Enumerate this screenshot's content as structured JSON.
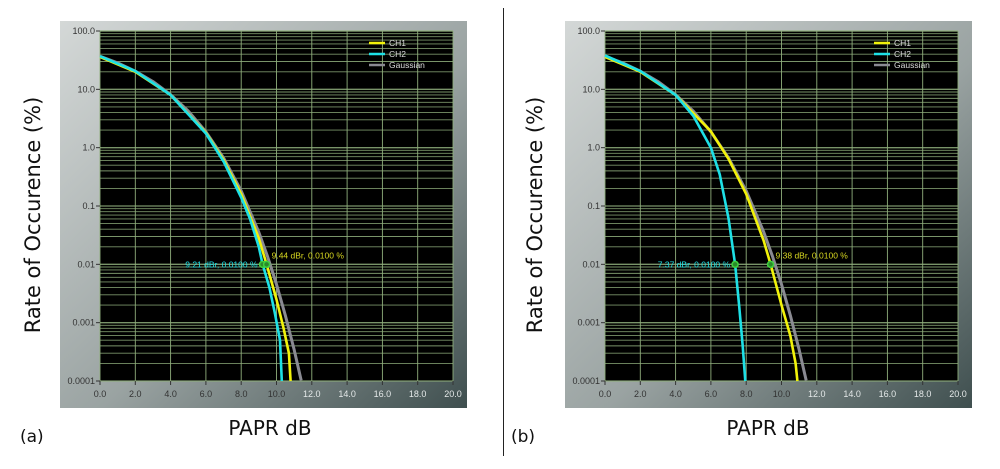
{
  "chart_data": [
    {
      "type": "line",
      "panel_label": "(a)",
      "xlabel": "PAPR dB",
      "ylabel": "Rate of Occurence (%)",
      "xlim": [
        0,
        20
      ],
      "ylim": [
        0.0001,
        100
      ],
      "yscale": "log",
      "grid": true,
      "legend_position": "top-right",
      "xticks": [
        "0.0",
        "2.0",
        "4.0",
        "6.0",
        "8.0",
        "10.0",
        "12.0",
        "14.0",
        "16.0",
        "18.0",
        "20.0"
      ],
      "yticks": [
        "100.0",
        "10.0",
        "1.0",
        "0.1",
        "0.01",
        "0.001",
        "0.0001"
      ],
      "series": [
        {
          "name": "CH1",
          "color": "#f2f20a",
          "x": [
            0,
            2,
            4,
            6,
            7,
            8,
            9,
            9.44,
            10,
            10.4,
            10.7,
            10.8
          ],
          "y": [
            36,
            20,
            8,
            1.8,
            0.62,
            0.16,
            0.028,
            0.01,
            0.0025,
            0.0008,
            0.0003,
            0.0001
          ]
        },
        {
          "name": "CH2",
          "color": "#1ee0e6",
          "x": [
            0,
            2,
            4,
            6,
            7,
            8,
            8.5,
            9,
            9.21,
            9.6,
            9.9,
            10.2,
            10.3
          ],
          "y": [
            37,
            20.5,
            8,
            1.75,
            0.58,
            0.14,
            0.06,
            0.02,
            0.01,
            0.004,
            0.0015,
            0.0005,
            0.0001
          ]
        },
        {
          "name": "Gaussian",
          "color": "#8a8a92",
          "x": [
            0,
            1,
            2,
            3,
            4,
            5,
            6,
            7,
            8,
            9,
            9.5,
            10,
            10.5,
            11,
            11.4
          ],
          "y": [
            36.79,
            28.39,
            20.49,
            13.6,
            8.11,
            4.23,
            1.87,
            0.666,
            0.182,
            0.0355,
            0.0134,
            0.00454,
            0.00134,
            0.000341,
            0.000102
          ]
        }
      ],
      "markers": [
        {
          "series": "CH2",
          "x": 9.21,
          "y": 0.01,
          "label": "9.21 dBr, 0.0100 %",
          "color": "#1ee0e6",
          "side": "left"
        },
        {
          "series": "CH1",
          "x": 9.44,
          "y": 0.01,
          "label": "9.44 dBr, 0.0100 %",
          "color": "#d8d820",
          "side": "right"
        }
      ]
    },
    {
      "type": "line",
      "panel_label": "(b)",
      "xlabel": "PAPR dB",
      "ylabel": "Rate of Occurence (%)",
      "xlim": [
        0,
        20
      ],
      "ylim": [
        0.0001,
        100
      ],
      "yscale": "log",
      "grid": true,
      "legend_position": "top-right",
      "xticks": [
        "0.0",
        "2.0",
        "4.0",
        "6.0",
        "8.0",
        "10.0",
        "12.0",
        "14.0",
        "16.0",
        "18.0",
        "20.0"
      ],
      "yticks": [
        "100.0",
        "10.0",
        "1.0",
        "0.1",
        "0.01",
        "0.001",
        "0.0001"
      ],
      "series": [
        {
          "name": "CH1",
          "color": "#f2f20a",
          "x": [
            0,
            2,
            4,
            6,
            7,
            8,
            9,
            9.38,
            10,
            10.5,
            10.8,
            10.9
          ],
          "y": [
            36,
            20,
            8,
            1.9,
            0.64,
            0.16,
            0.025,
            0.01,
            0.002,
            0.0006,
            0.0002,
            0.0001
          ]
        },
        {
          "name": "CH2",
          "color": "#1ee0e6",
          "x": [
            0,
            2,
            4,
            5,
            6,
            6.5,
            7,
            7.37,
            7.6,
            7.8,
            7.95
          ],
          "y": [
            38,
            20.5,
            8,
            3.5,
            1.0,
            0.35,
            0.06,
            0.01,
            0.002,
            0.0004,
            0.0001
          ]
        },
        {
          "name": "Gaussian",
          "color": "#8a8a92",
          "x": [
            0,
            1,
            2,
            3,
            4,
            5,
            6,
            7,
            8,
            9,
            9.5,
            10,
            10.5,
            11,
            11.4
          ],
          "y": [
            36.79,
            28.39,
            20.49,
            13.6,
            8.11,
            4.23,
            1.87,
            0.666,
            0.182,
            0.0355,
            0.0134,
            0.00454,
            0.00134,
            0.000341,
            0.000102
          ]
        }
      ],
      "markers": [
        {
          "series": "CH2",
          "x": 7.37,
          "y": 0.01,
          "label": "7.37 dBr, 0.0100 %",
          "color": "#1ee0e6",
          "side": "left"
        },
        {
          "series": "CH1",
          "x": 9.38,
          "y": 0.01,
          "label": "9.38 dBr, 0.0100 %",
          "color": "#d8d820",
          "side": "right"
        }
      ]
    }
  ]
}
